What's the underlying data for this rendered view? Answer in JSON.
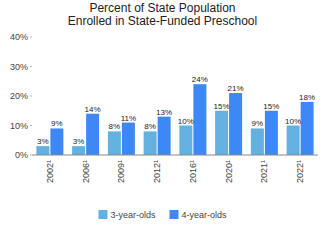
{
  "chart_data": {
    "type": "bar",
    "title": "Percent of State Population Enrolled in State-Funded Preschool",
    "categories": [
      "2002¹",
      "2006¹",
      "2009¹",
      "2012¹",
      "2016¹",
      "2020¹",
      "2021¹",
      "2022¹"
    ],
    "series": [
      {
        "name": "3-year-olds",
        "color": "#62b1e0",
        "values": [
          3,
          3,
          8,
          8,
          10,
          15,
          9,
          10
        ],
        "value_labels": [
          "3%",
          "3%",
          "8%",
          "8%",
          "10%",
          "15%",
          "9%",
          "10%"
        ]
      },
      {
        "name": "4-year-olds",
        "color": "#3d88f5",
        "values": [
          9,
          14,
          11,
          13,
          24,
          21,
          15,
          18
        ],
        "value_labels": [
          "9%",
          "14%",
          "11%",
          "13%",
          "24%",
          "21%",
          "15%",
          "18%"
        ]
      }
    ],
    "ylim": [
      0,
      40
    ],
    "yticks": [
      {
        "value": 0,
        "label": "0%"
      },
      {
        "value": 10,
        "label": "10%"
      },
      {
        "value": 20,
        "label": "20%"
      },
      {
        "value": 30,
        "label": "30%"
      },
      {
        "value": 40,
        "label": "40%"
      }
    ],
    "grid": false,
    "legend": "bottom",
    "data_labels": true
  }
}
